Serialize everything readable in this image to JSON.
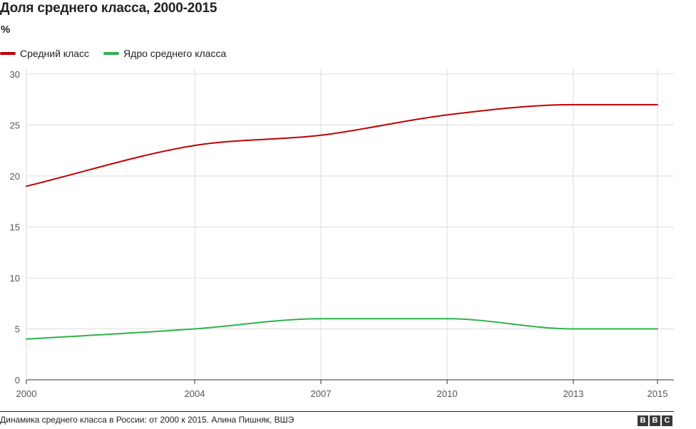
{
  "chart_data": {
    "type": "line",
    "title": "Доля среднего класса, 2000-2015",
    "unit_label": "%",
    "x": [
      2000,
      2004,
      2007,
      2010,
      2013,
      2015
    ],
    "x_ticks": [
      "2000",
      "2004",
      "2007",
      "2010",
      "2013",
      "2015"
    ],
    "y_ticks": [
      "0",
      "5",
      "10",
      "15",
      "20",
      "25",
      "30"
    ],
    "ylim": [
      0,
      30
    ],
    "grid": true,
    "legend_position": "top-left",
    "series": [
      {
        "name": "Средний класс",
        "color": "#c00000",
        "values": [
          19,
          23,
          24,
          26,
          27,
          27
        ]
      },
      {
        "name": "Ядро среднего класса",
        "color": "#2db34a",
        "values": [
          4,
          5,
          6,
          6,
          5,
          5
        ]
      }
    ]
  },
  "footer": {
    "source": "Динамика среднего класса в России: от 2000 к 2015. Алина Пишняк, ВШЭ",
    "logo_letters": [
      "B",
      "B",
      "C"
    ]
  }
}
